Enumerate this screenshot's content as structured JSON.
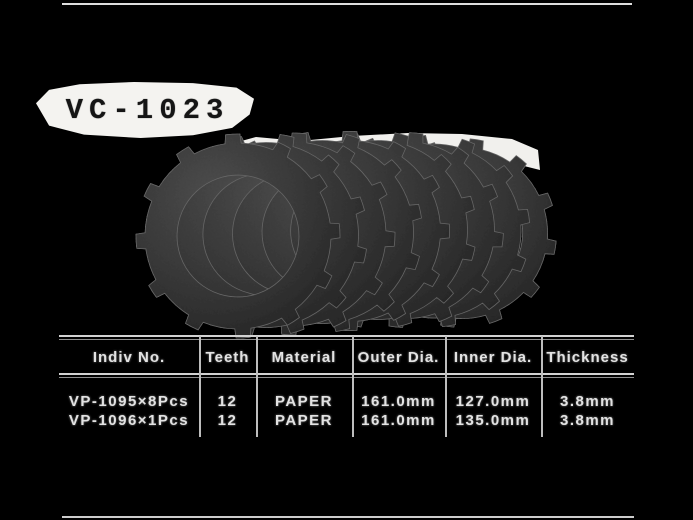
{
  "page": {
    "background": "#000000",
    "frame_line_color": "#dedede"
  },
  "title": {
    "label": "VC-1023",
    "text_color": "#151515",
    "patch_color": "#f4f3f0"
  },
  "photo": {
    "icon": "clutch-friction-plates-photo",
    "plate_count": 9,
    "plate_color": "#3a3a3a",
    "plate_edge_color": "#646464",
    "cutout_white": "#f1f0ed"
  },
  "table": {
    "line_color": "#c9c9c9",
    "text_color": "#e3e3e3",
    "columns": [
      "Indiv No.",
      "Teeth",
      "Material",
      "Outer Dia.",
      "Inner Dia.",
      "Thickness"
    ],
    "rows": [
      [
        "VP-1095×8Pcs",
        "12",
        "PAPER",
        "161.0mm",
        "127.0mm",
        "3.8mm"
      ],
      [
        "VP-1096×1Pcs",
        "12",
        "PAPER",
        "161.0mm",
        "135.0mm",
        "3.8mm"
      ]
    ]
  }
}
